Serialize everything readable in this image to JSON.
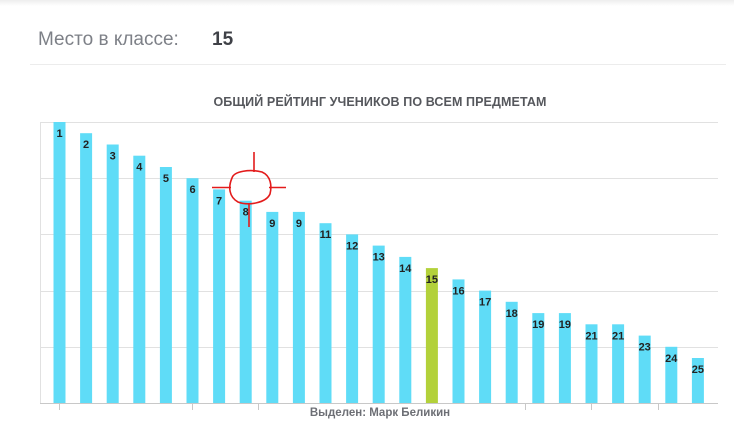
{
  "header": {
    "place_label": "Место в классе:",
    "place_value": "15"
  },
  "chart_data": {
    "type": "bar",
    "title": "ОБЩИЙ РЕЙТИНГ УЧЕНИКОВ ПО ВСЕМ ПРЕДМЕТАМ",
    "footer": "Выделен: Марк Беликин",
    "values": [
      25,
      24,
      23,
      22,
      21,
      20,
      19,
      18,
      17,
      17,
      16,
      15,
      14,
      13,
      12,
      11,
      10,
      9,
      8,
      8,
      7,
      7,
      6,
      5,
      4
    ],
    "labels": [
      "1",
      "2",
      "3",
      "4",
      "5",
      "6",
      "7",
      "8",
      "9",
      "9",
      "11",
      "12",
      "13",
      "14",
      "15",
      "16",
      "17",
      "18",
      "19",
      "19",
      "21",
      "21",
      "23",
      "24",
      "25"
    ],
    "highlight_index": 14,
    "ylim": [
      0,
      25
    ],
    "grid": true,
    "colors": {
      "bar": "#5fdcf7",
      "highlight": "#b3d13a",
      "grid": "#e1e1e1",
      "axis": "#c8c8c8",
      "label": "#222222",
      "annotation": "#e31b1b"
    }
  }
}
